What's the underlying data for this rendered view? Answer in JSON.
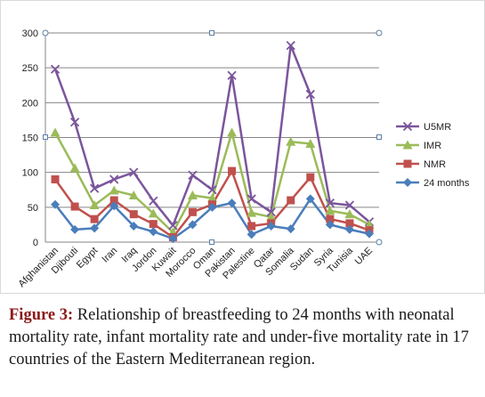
{
  "chart_data": {
    "type": "line",
    "categories": [
      "Afghanistan",
      "Djibouti",
      "Egypt",
      "Iran",
      "Iraq",
      "Jordon",
      "Kuwait",
      "Morocco",
      "Oman",
      "Pakistan",
      "Palestine",
      "Qatar",
      "Somalia",
      "Sudan",
      "Syria",
      "Tunisia",
      "UAE"
    ],
    "ylim": [
      0,
      300
    ],
    "yticks": [
      0,
      50,
      100,
      150,
      200,
      250,
      300
    ],
    "grid": true,
    "legend_position": "right",
    "series": [
      {
        "name": "U5MR",
        "color": "#7b559c",
        "marker": "x",
        "values": [
          248,
          172,
          77,
          90,
          100,
          59,
          24,
          96,
          75,
          239,
          62,
          43,
          282,
          212,
          56,
          53,
          29
        ]
      },
      {
        "name": "IMR",
        "color": "#9bbb59",
        "marker": "triangle",
        "values": [
          157,
          106,
          53,
          74,
          67,
          41,
          14,
          67,
          63,
          157,
          42,
          36,
          144,
          141,
          45,
          40,
          25
        ]
      },
      {
        "name": "NMR",
        "color": "#c0504d",
        "marker": "square",
        "values": [
          90,
          51,
          33,
          60,
          40,
          26,
          7,
          43,
          54,
          102,
          23,
          27,
          60,
          93,
          33,
          27,
          17
        ]
      },
      {
        "name": "24 months",
        "color": "#4a7ebb",
        "marker": "diamond",
        "values": [
          54,
          18,
          20,
          52,
          23,
          15,
          5,
          25,
          50,
          56,
          11,
          23,
          19,
          62,
          25,
          18,
          12
        ]
      }
    ]
  },
  "caption": {
    "label": "Figure 3:",
    "text": " Relationship of breastfeeding to 24 months with neonatal mortality rate, infant mortality rate and under-five mortality rate in 17 countries of the Eastern Mediterranean region."
  }
}
